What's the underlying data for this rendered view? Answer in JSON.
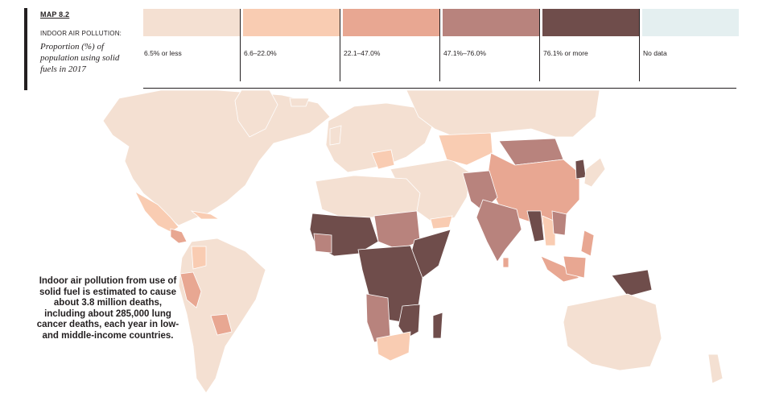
{
  "header": {
    "map_id": "MAP 8.2",
    "title": "INDOOR AIR POLLUTION:",
    "subtitle": "Proportion (%) of population using solid fuels in 2017"
  },
  "legend": {
    "items": [
      {
        "label": "6.5% or less",
        "color": "#f4e0d2"
      },
      {
        "label": "6.6–22.0%",
        "color": "#f9ccb2"
      },
      {
        "label": "22.1–47.0%",
        "color": "#e8a792"
      },
      {
        "label": "47.1%–76.0%",
        "color": "#b8837d"
      },
      {
        "label": "76.1% or more",
        "color": "#6f4d4b"
      },
      {
        "label": "No data",
        "color": "#e4eff0"
      }
    ]
  },
  "callout": {
    "text": "Indoor air pollution from use of solid fuel is estimated to cause about 3.8 million deaths, including about 285,000 lung cancer deaths, each year in low- and middle-income countries."
  }
}
